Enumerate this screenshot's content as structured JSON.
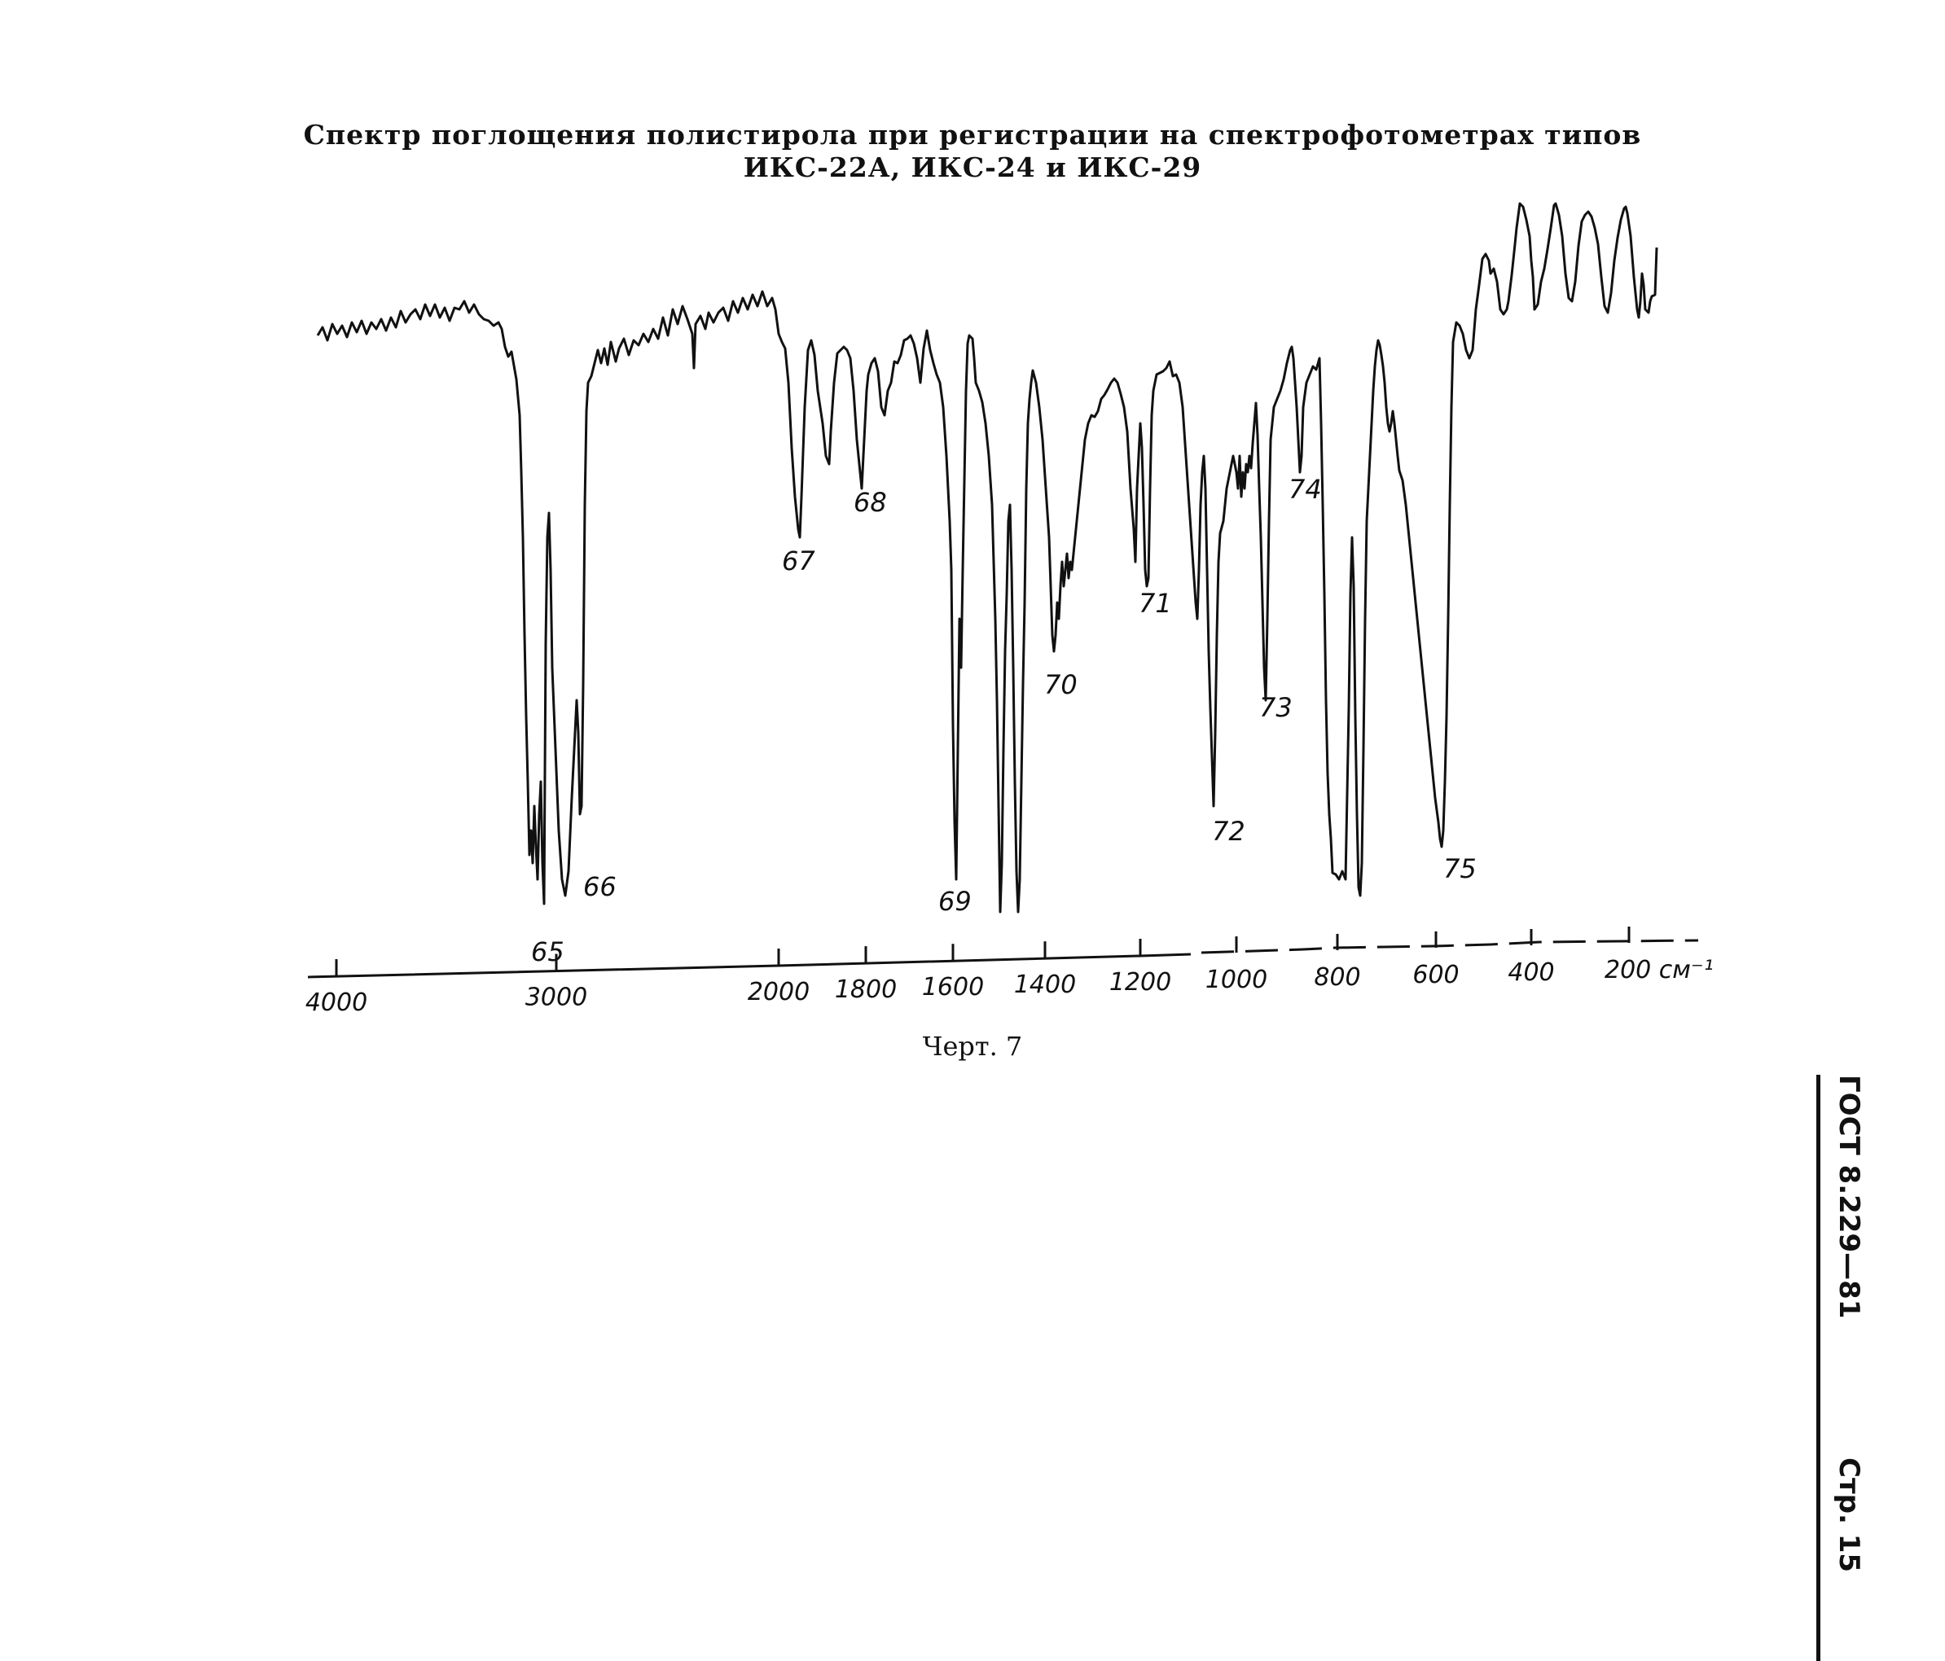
{
  "title_line1": "Спектр поглощения полистирола при регистрации на спектрофотометрах типов",
  "title_line2": "ИКС-22А, ИКС-24 и ИКС-29",
  "caption": "Черт. 7",
  "side_header": {
    "standard": "ГОСТ 8.229—81",
    "page": "Стр. 15"
  },
  "chart_data": {
    "type": "line",
    "title": "Спектр поглощения полистирола при регистрации на спектрофотометрах типов ИКС-22А, ИКС-24 и ИКС-29",
    "xlabel": "см⁻¹",
    "ylabel": "",
    "x_ticks": [
      "4000",
      "3000",
      "2000",
      "1800",
      "1600",
      "1400",
      "1200",
      "1000",
      "800",
      "600",
      "400",
      "200 см⁻¹"
    ],
    "x_tick_values": [
      4000,
      3000,
      2000,
      1800,
      1600,
      1400,
      1200,
      1000,
      800,
      600,
      400,
      200
    ],
    "peaks": [
      {
        "label": "65",
        "x": 3060
      },
      {
        "label": "66",
        "x": 2850
      },
      {
        "label": "67",
        "x": 1944
      },
      {
        "label": "68",
        "x": 1801
      },
      {
        "label": "69",
        "x": 1601
      },
      {
        "label": "70",
        "x": 1370
      },
      {
        "label": "71",
        "x": 1181
      },
      {
        "label": "72",
        "x": 1028
      },
      {
        "label": "73",
        "x": 906
      },
      {
        "label": "74",
        "x": 842
      },
      {
        "label": "75",
        "x": 540
      }
    ],
    "grid": false
  }
}
